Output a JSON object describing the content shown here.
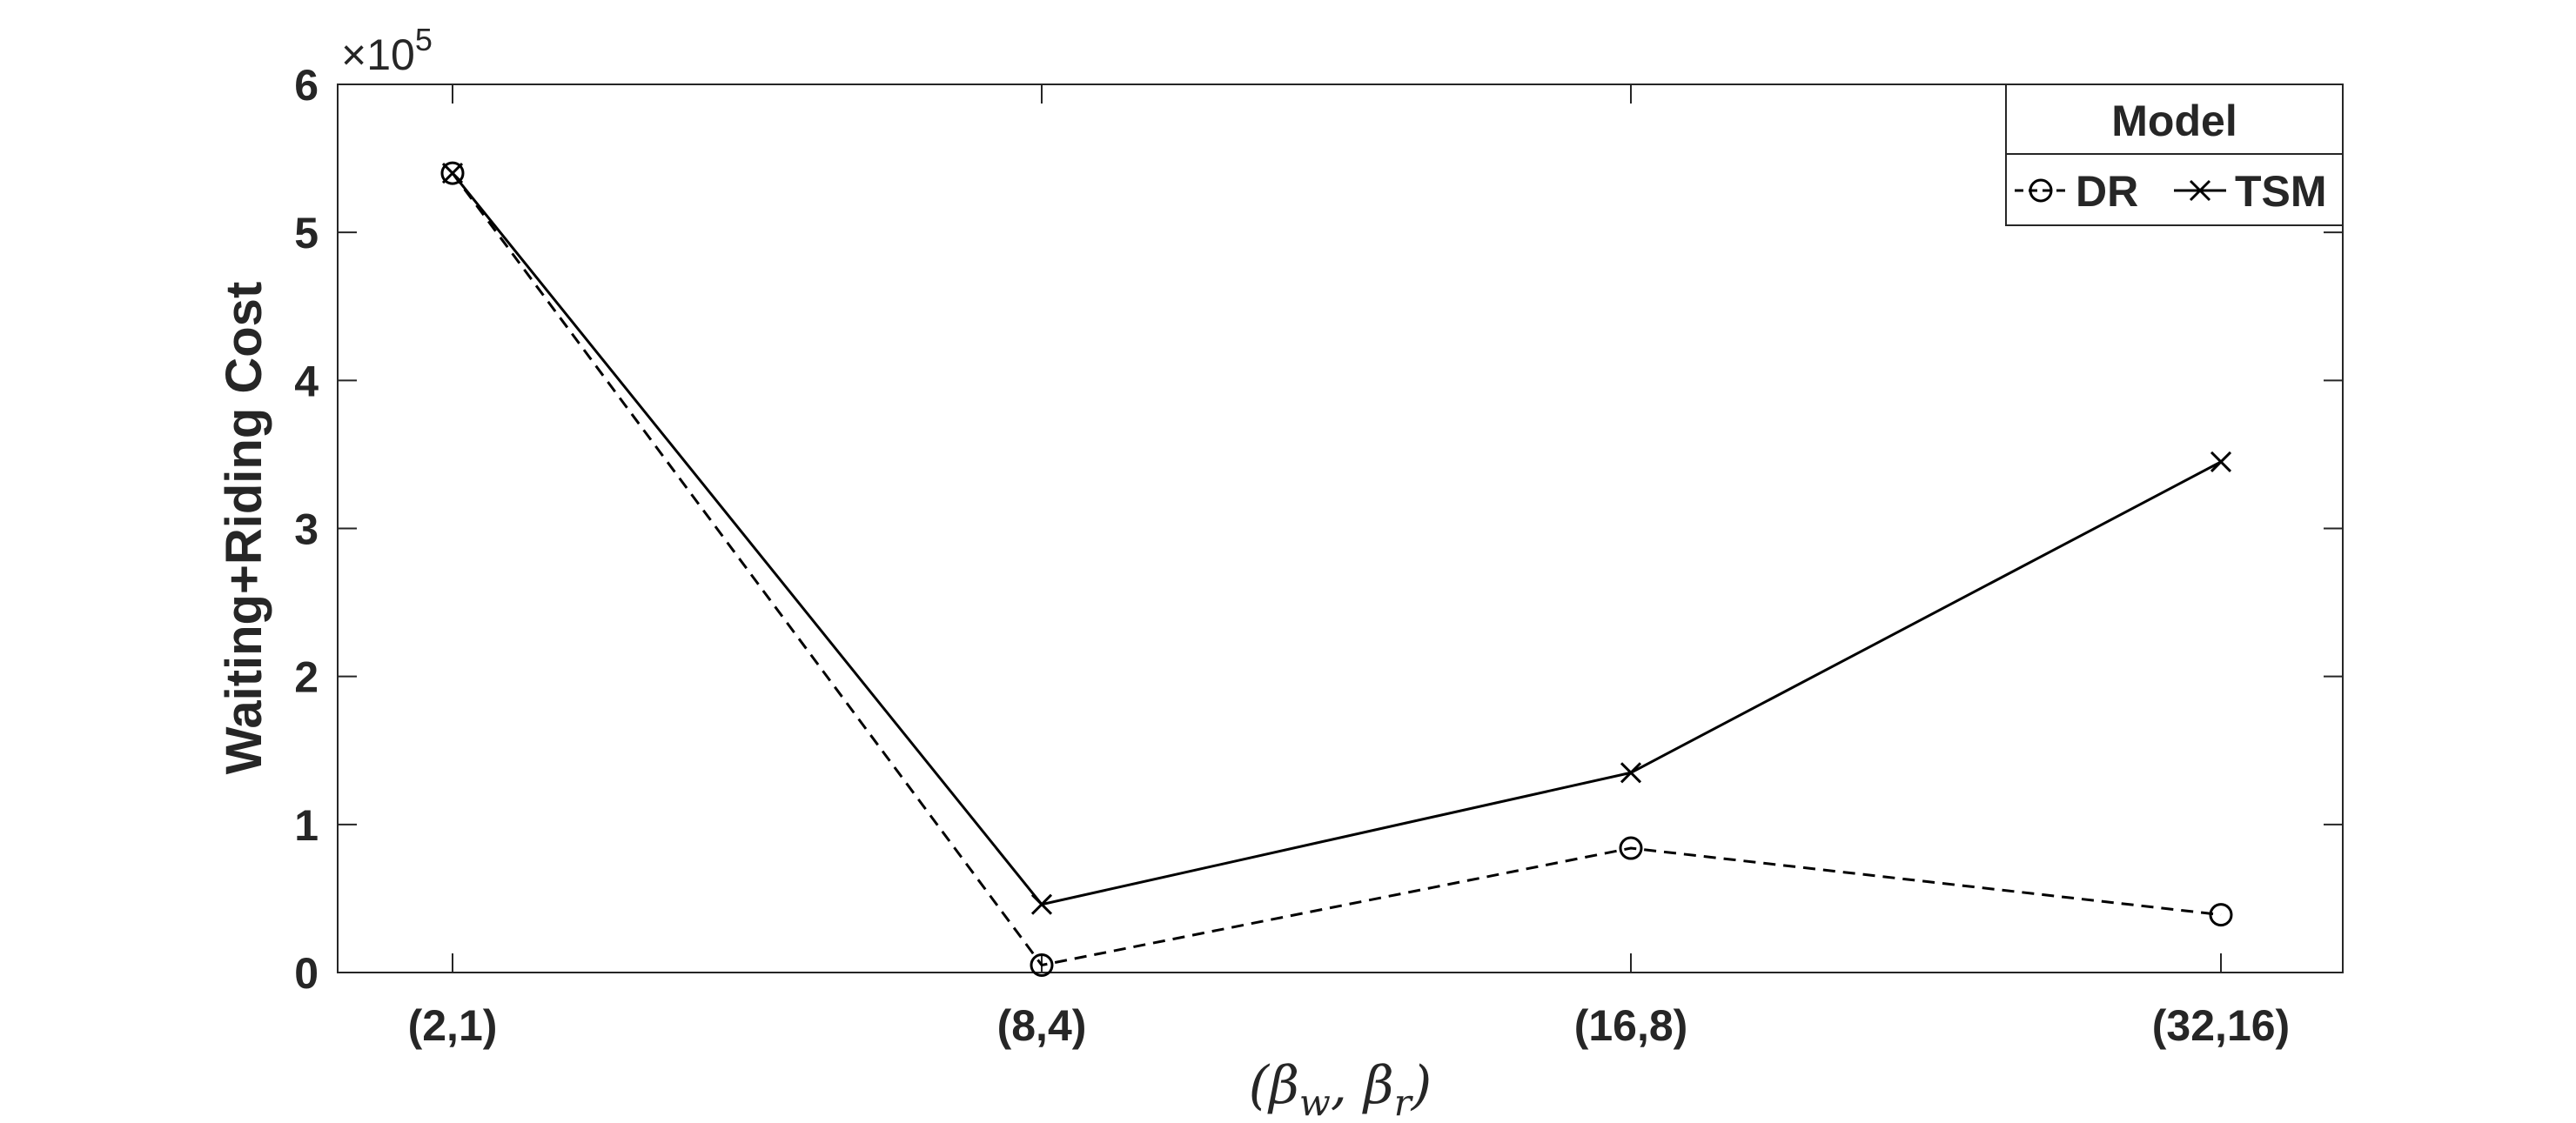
{
  "chart_data": {
    "type": "line",
    "title": "",
    "xlabel": "(β_w, β_r)",
    "ylabel": "Waiting+Riding Cost",
    "y_multiplier": "×10",
    "y_multiplier_exponent": "5",
    "categories": [
      "(2,1)",
      "(8,4)",
      "(16,8)",
      "(32,16)"
    ],
    "ylim": [
      0,
      6
    ],
    "yticks": [
      0,
      1,
      2,
      3,
      4,
      5,
      6
    ],
    "ytick_labels": [
      "0",
      "1",
      "2",
      "3",
      "4",
      "5",
      "6"
    ],
    "grid": false,
    "legend": {
      "title": "Model",
      "placement": "top-right"
    },
    "series": [
      {
        "name": "DR",
        "values": [
          5.4,
          0.05,
          0.84,
          0.39
        ],
        "line_style": "dashed",
        "marker": "circle",
        "color": "#000000"
      },
      {
        "name": "TSM",
        "values": [
          5.4,
          0.46,
          1.35,
          3.45
        ],
        "line_style": "solid",
        "marker": "x",
        "color": "#000000"
      }
    ]
  }
}
